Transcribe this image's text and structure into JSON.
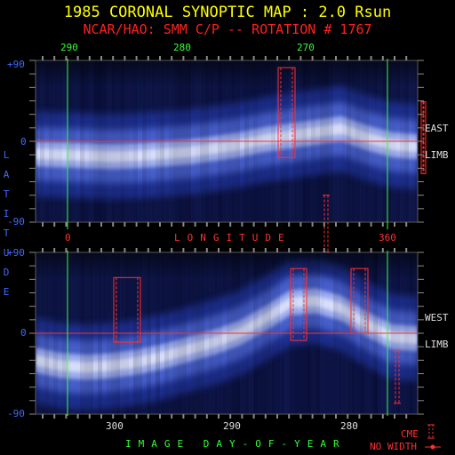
{
  "title": "1985 CORONAL SYNOPTIC MAP : 2.0 Rsun",
  "subtitle": "NCAR/HAO: SMM C/P -- ROTATION # 1767",
  "colors": {
    "background": "#000000",
    "title": "#ffff00",
    "subtitle": "#ff2020",
    "green_axis": "#33ff33",
    "blue_axis": "#3d6bff",
    "red_axis": "#ff3030",
    "map_dark": "#0a0f3a",
    "map_bright": "#e8ecff"
  },
  "chart_data": [
    {
      "type": "heatmap",
      "panel": "east-limb",
      "side_label": [
        "EAST",
        "LIMB"
      ],
      "top_axis_label": "",
      "top_ticks": [
        "290",
        "280",
        "270"
      ],
      "bottom_ticks": [
        "0",
        "360"
      ],
      "xlabel": "LONGITUDE",
      "ylabel": "LATITUDE",
      "ylim": [
        -90,
        90
      ],
      "y_ticks": [
        "+90",
        "0",
        "-90"
      ],
      "band_center_latitude": [
        -14,
        -15,
        -16,
        -17,
        -16,
        -14,
        -12,
        -8,
        -4,
        2,
        6,
        10,
        14,
        4,
        -4,
        -6
      ],
      "cme_markers": [
        {
          "kind": "width",
          "lon_range": [
            313,
            332
          ],
          "lat_range": [
            -18,
            82
          ]
        },
        {
          "kind": "width",
          "lon_range": [
            474,
            479
          ],
          "lat_range": [
            -36,
            44
          ]
        },
        {
          "kind": "no-width",
          "lon": 367,
          "lat_range": [
            -60,
            -123
          ]
        }
      ]
    },
    {
      "type": "heatmap",
      "panel": "west-limb",
      "side_label": [
        "WEST",
        "LIMB"
      ],
      "bottom_ticks": [
        "300",
        "290",
        "280"
      ],
      "xlabel": "IMAGE DAY-OF-YEAR",
      "ylim": [
        -90,
        90
      ],
      "y_ticks": [
        "+90",
        "0",
        "-90"
      ],
      "band_center_latitude": [
        -30,
        -36,
        -38,
        -36,
        -32,
        -26,
        -18,
        -10,
        0,
        16,
        34,
        36,
        28,
        10,
        -4,
        -6
      ],
      "cme_markers": [
        {
          "kind": "width",
          "lon_range": [
            128,
            158
          ],
          "lat_range": [
            -10,
            62
          ]
        },
        {
          "kind": "width",
          "lon_range": [
            327,
            345
          ],
          "lat_range": [
            -8,
            72
          ]
        },
        {
          "kind": "width",
          "lon_range": [
            395,
            414
          ],
          "lat_range": [
            0,
            72
          ]
        },
        {
          "kind": "no-width",
          "lon": 447,
          "lat_range": [
            -20,
            -78
          ]
        }
      ]
    }
  ],
  "legend": {
    "cme_label": "CME",
    "no_width_label": "NO WIDTH"
  }
}
